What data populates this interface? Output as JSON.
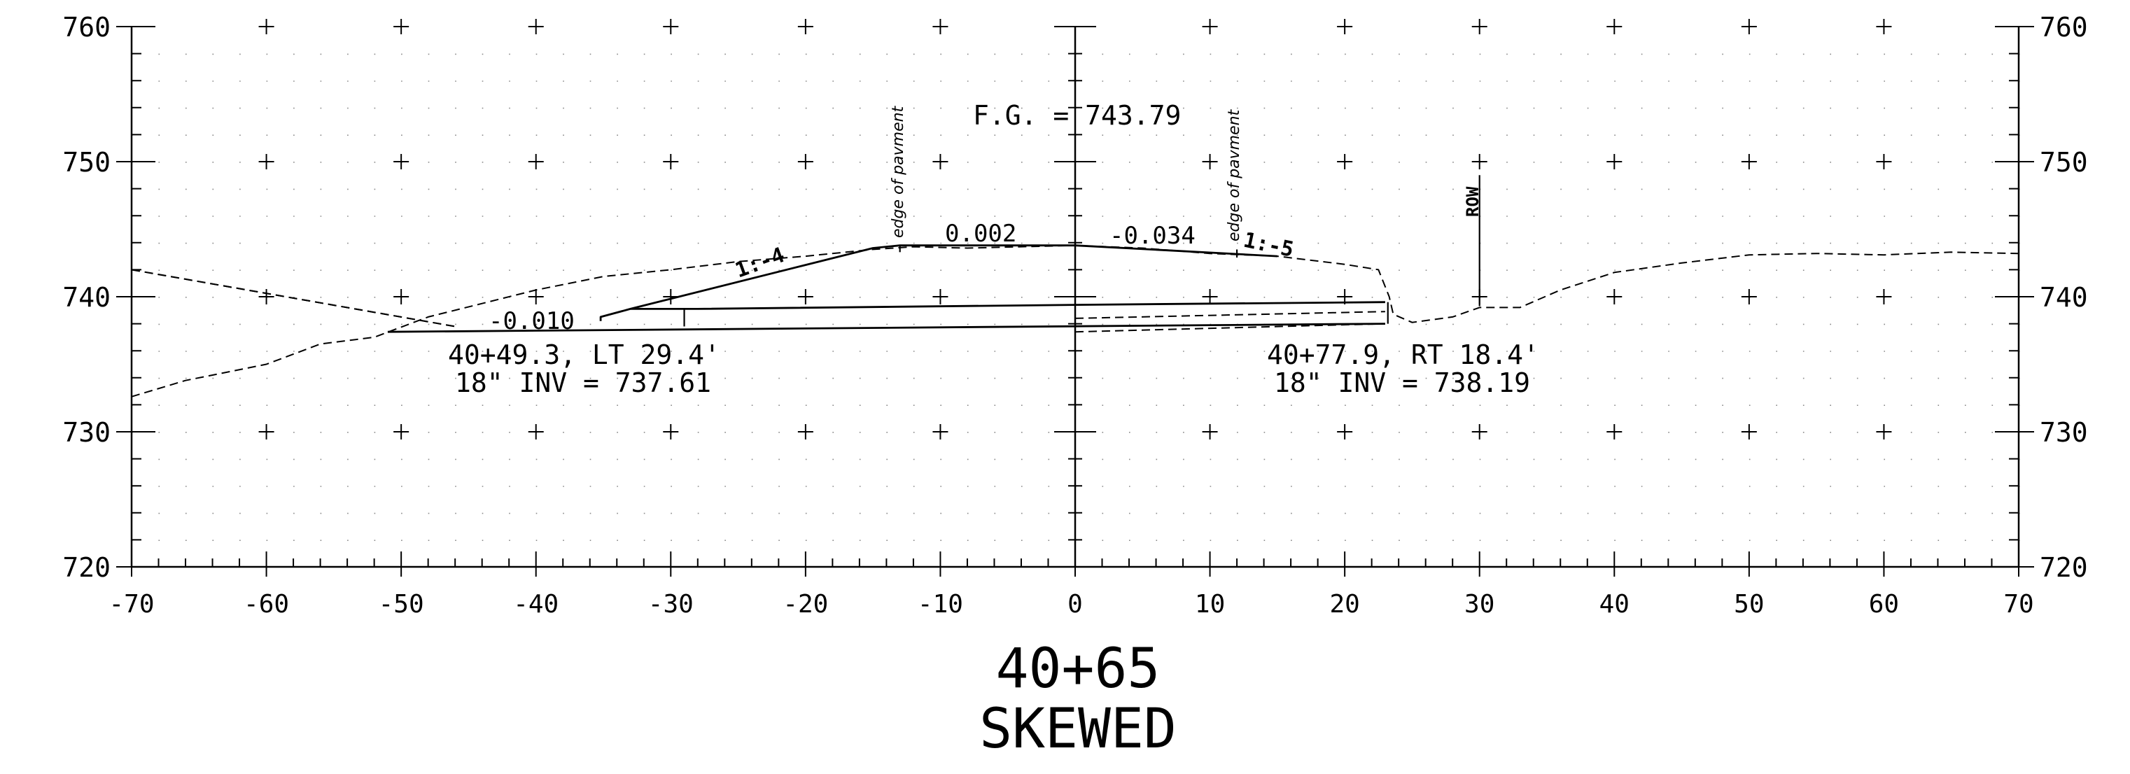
{
  "title": {
    "station": "40+65",
    "subtitle": "SKEWED"
  },
  "axes": {
    "x_ticks": [
      "-70",
      "-60",
      "-50",
      "-40",
      "-30",
      "-20",
      "-10",
      "0",
      "10",
      "20",
      "30",
      "40",
      "50",
      "60",
      "70"
    ],
    "y_ticks_left": [
      "760",
      "750",
      "740",
      "730",
      "720"
    ],
    "y_ticks_right": [
      "760",
      "750",
      "740",
      "730",
      "720"
    ],
    "xlim": [
      -70,
      70
    ],
    "ylim": [
      720,
      760
    ]
  },
  "annotations": {
    "finished_grade": "F.G. = 743.79",
    "edge_left": "edge of pavment",
    "edge_right": "edge of pavment",
    "row": "ROW",
    "slope_center_left": "0.002",
    "slope_center_right": "-0.034",
    "slope_left_side": "1:-4",
    "slope_right_side": "1:-5",
    "slope_pipe": "-0.010",
    "pipe_left_station": "40+49.3, LT 29.4'",
    "pipe_left_inv": "18\" INV = 737.61",
    "pipe_right_station": "40+77.9, RT 18.4'",
    "pipe_right_inv": "18\" INV = 738.19"
  },
  "chart_data": {
    "type": "line",
    "xlim": [
      -70,
      70
    ],
    "ylim": [
      720,
      760
    ],
    "grid": true,
    "series": [
      {
        "style": "dashed",
        "points": [
          [
            -70,
            732.6
          ],
          [
            -66,
            733.8
          ],
          [
            -60,
            735.0
          ],
          [
            -56,
            736.5
          ],
          [
            -52,
            737.0
          ],
          [
            -48,
            738.5
          ],
          [
            -44,
            739.5
          ],
          [
            -40,
            740.5
          ],
          [
            -35,
            741.5
          ],
          [
            -30,
            742.0
          ],
          [
            -25,
            742.6
          ],
          [
            -20,
            743.0
          ],
          [
            -15,
            743.5
          ],
          [
            -12,
            743.7
          ],
          [
            -8,
            743.6
          ],
          [
            0,
            743.8
          ],
          [
            5,
            743.6
          ],
          [
            10,
            743.2
          ],
          [
            15,
            743.0
          ],
          [
            20,
            742.4
          ],
          [
            22.5,
            742.0
          ],
          [
            23.3,
            740.0
          ],
          [
            23.6,
            738.7
          ],
          [
            25,
            738.1
          ],
          [
            28,
            738.5
          ],
          [
            30,
            739.2
          ],
          [
            33,
            739.2
          ],
          [
            36,
            740.5
          ],
          [
            40,
            741.8
          ],
          [
            45,
            742.5
          ],
          [
            50,
            743.1
          ],
          [
            55,
            743.2
          ],
          [
            60,
            743.1
          ],
          [
            65,
            743.3
          ],
          [
            70,
            743.2
          ]
        ]
      },
      {
        "style": "dashed",
        "points": [
          [
            -70,
            742.0
          ],
          [
            -46,
            737.8
          ]
        ]
      },
      {
        "style": "dashed",
        "points": [
          [
            -70,
            742.0
          ],
          [
            -46,
            737.8
          ]
        ]
      },
      {
        "style": "solid",
        "points": [
          [
            -51,
            737.4
          ],
          [
            23,
            738.0
          ]
        ]
      },
      {
        "style": "solid",
        "points": [
          [
            -35.2,
            738.2
          ],
          [
            -35.2,
            738.5
          ],
          [
            -33,
            739.1
          ],
          [
            -28,
            739.1
          ],
          [
            0,
            739.4
          ],
          [
            23,
            739.6
          ]
        ]
      },
      {
        "style": "solid",
        "points": [
          [
            -33,
            739.1
          ],
          [
            -15,
            743.6
          ],
          [
            -13,
            743.8
          ],
          [
            0,
            743.8
          ],
          [
            15,
            743.0
          ]
        ]
      },
      {
        "style": "dashed",
        "points": [
          [
            0,
            737.4
          ],
          [
            23,
            738.0
          ]
        ]
      },
      {
        "style": "dashed",
        "points": [
          [
            0,
            738.4
          ],
          [
            23,
            738.9
          ]
        ]
      }
    ]
  }
}
